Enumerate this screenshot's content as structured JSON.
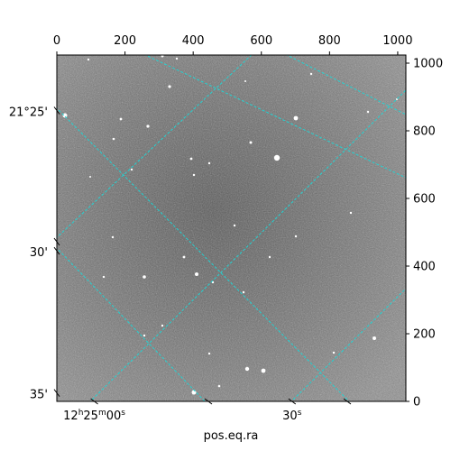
{
  "figure": {
    "xlabel": "pos.eq.ra",
    "top_axis": {
      "range": [
        0,
        1024
      ],
      "ticks": [
        0,
        200,
        400,
        600,
        800,
        1000
      ]
    },
    "right_axis": {
      "range": [
        0,
        1024
      ],
      "ticks": [
        0,
        200,
        400,
        600,
        800,
        1000
      ]
    },
    "left_dec_labels": [
      {
        "text": "21°25'",
        "pix_y": 860
      },
      {
        "text": "30'",
        "pix_y": 445
      },
      {
        "text": "35'",
        "pix_y": 25
      }
    ],
    "bottom_ra_labels": [
      {
        "text": "12h25m00s",
        "pix_x": 110
      },
      {
        "text": "30s",
        "pix_x": 690
      }
    ],
    "grid_color": "#22d3d3",
    "image_type": "grayscale noisy astronomical field with stars"
  }
}
